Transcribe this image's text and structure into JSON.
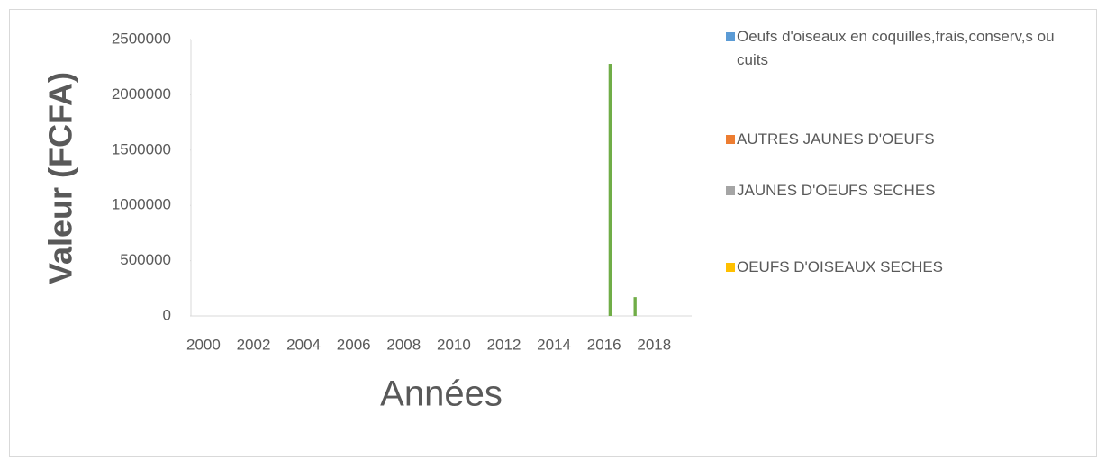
{
  "chart_data": {
    "type": "bar",
    "categories": [
      "2000",
      null,
      "2002",
      null,
      "2004",
      null,
      "2006",
      null,
      "2008",
      null,
      "2010",
      null,
      "2012",
      null,
      "2014",
      null,
      "2016",
      null,
      "2018",
      null
    ],
    "series": [
      {
        "name": "Oeufs d'oiseaux en coquilles,frais,conserv,s ou cuits",
        "color": "#5b9bd5",
        "values": [
          0,
          0,
          0,
          0,
          0,
          0,
          0,
          0,
          0,
          0,
          0,
          0,
          0,
          0,
          0,
          0,
          0,
          0,
          0,
          0
        ]
      },
      {
        "name": "AUTRES JAUNES D'OEUFS",
        "color": "#ed7d31",
        "values": [
          0,
          0,
          0,
          0,
          0,
          0,
          0,
          0,
          0,
          0,
          0,
          0,
          0,
          0,
          0,
          0,
          0,
          0,
          0,
          0
        ]
      },
      {
        "name": "JAUNES D'OEUFS SECHES",
        "color": "#a5a5a5",
        "values": [
          0,
          0,
          0,
          0,
          0,
          0,
          0,
          0,
          0,
          0,
          0,
          0,
          0,
          0,
          0,
          0,
          0,
          0,
          0,
          0
        ]
      },
      {
        "name": "OEUFS D'OISEAUX SECHES",
        "color": "#ffc000",
        "values": [
          0,
          0,
          0,
          0,
          0,
          0,
          0,
          0,
          0,
          0,
          0,
          0,
          0,
          0,
          0,
          0,
          0,
          0,
          0,
          0
        ]
      },
      {
        "color": "#70ad47",
        "values": [
          0,
          0,
          0,
          0,
          0,
          0,
          0,
          0,
          0,
          0,
          0,
          0,
          0,
          0,
          0,
          0,
          2280000,
          170000,
          0,
          0
        ]
      }
    ],
    "xlabel": "Années",
    "ylabel": "Valeur (FCFA)",
    "ylim": [
      0,
      2500000
    ],
    "yticks": [
      0,
      500000,
      1000000,
      1500000,
      2000000,
      2500000
    ]
  }
}
